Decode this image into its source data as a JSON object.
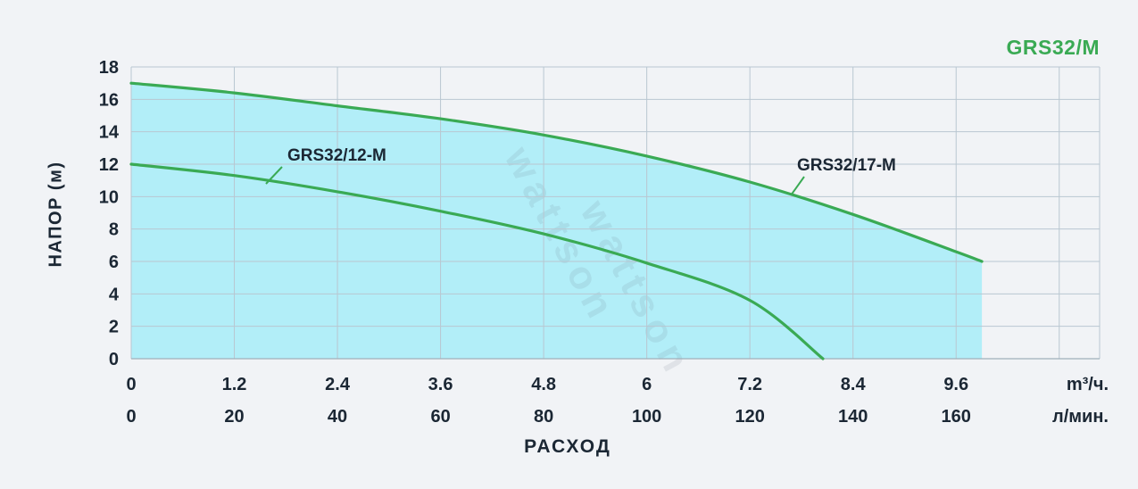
{
  "chart_data": {
    "type": "line",
    "title": "GRS32/M",
    "xlabel": "РАСХОД",
    "ylabel": "НАПОР (м)",
    "watermark": "wattson",
    "x_axis": {
      "unit_row1": "m³/ч.",
      "unit_row2": "л/мин.",
      "ticks_m3h": [
        "0",
        "1.2",
        "2.4",
        "3.6",
        "4.8",
        "6",
        "7.2",
        "8.4",
        "9.6"
      ],
      "ticks_lmin": [
        "0",
        "20",
        "40",
        "60",
        "80",
        "100",
        "120",
        "140",
        "160"
      ]
    },
    "y_ticks": [
      "0",
      "2",
      "4",
      "6",
      "8",
      "10",
      "12",
      "14",
      "16",
      "18"
    ],
    "ylim": [
      0,
      18
    ],
    "xlim_m3h": [
      0,
      11.27
    ],
    "series": [
      {
        "name": "GRS32/17-M",
        "x": [
          0,
          1.2,
          2.4,
          3.6,
          4.8,
          6,
          7.2,
          8.4,
          9.6,
          9.9
        ],
        "y": [
          17,
          16.4,
          15.6,
          14.8,
          13.8,
          12.5,
          10.9,
          8.9,
          6.6,
          6
        ],
        "fill": true
      },
      {
        "name": "GRS32/12-M",
        "x": [
          0,
          1.2,
          2.4,
          3.6,
          4.8,
          6,
          7.2,
          8.05
        ],
        "y": [
          12,
          11.3,
          10.3,
          9.1,
          7.7,
          5.9,
          3.6,
          0
        ],
        "fill": false
      }
    ],
    "colors": {
      "curve": "#3aaa54",
      "title": "#3aaa54",
      "fill": "#b2eef8",
      "grid": "#b9c7d1",
      "text": "#1b2734",
      "background": "#f1f3f6"
    }
  }
}
